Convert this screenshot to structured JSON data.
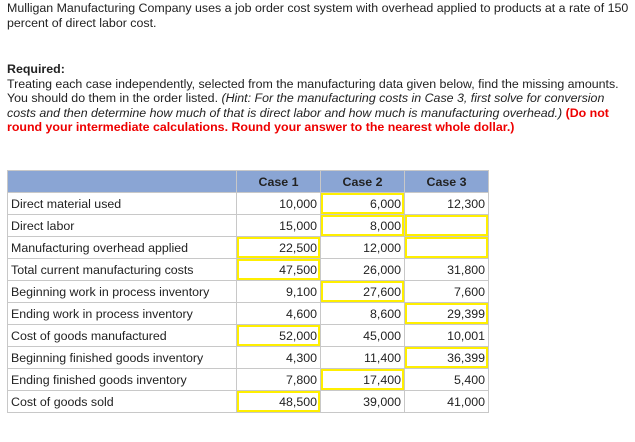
{
  "intro": "Mulligan Manufacturing Company uses a job order cost system with overhead applied to products at a rate of 150 percent of direct labor cost.",
  "required": {
    "heading": "Required:",
    "text": "Treating each case independently, selected from the manufacturing data given below, find the missing amounts. You should do them in the order listed. ",
    "hint": "(Hint: For the manufacturing costs in Case 3, first solve for conversion costs and then determine how much of that is direct labor and how much is manufacturing overhead.)",
    "warning": "(Do not round your intermediate calculations. Round your answer to the nearest whole dollar.)"
  },
  "table": {
    "headers": [
      "",
      "Case 1",
      "Case 2",
      "Case 3"
    ],
    "rows": [
      {
        "label": "Direct material used",
        "values": [
          "10,000",
          "6,000",
          "12,300"
        ],
        "inputs": [
          false,
          true,
          false
        ]
      },
      {
        "label": "Direct labor",
        "values": [
          "15,000",
          "8,000",
          ""
        ],
        "inputs": [
          false,
          true,
          true
        ]
      },
      {
        "label": "Manufacturing overhead applied",
        "values": [
          "22,500",
          "12,000",
          ""
        ],
        "inputs": [
          true,
          false,
          true
        ]
      },
      {
        "label": "Total current manufacturing costs",
        "values": [
          "47,500",
          "26,000",
          "31,800"
        ],
        "inputs": [
          true,
          false,
          false
        ]
      },
      {
        "label": "Beginning work in process inventory",
        "values": [
          "9,100",
          "27,600",
          "7,600"
        ],
        "inputs": [
          false,
          true,
          false
        ]
      },
      {
        "label": "Ending work in process inventory",
        "values": [
          "4,600",
          "8,600",
          "29,399"
        ],
        "inputs": [
          false,
          false,
          true
        ]
      },
      {
        "label": "Cost of goods manufactured",
        "values": [
          "52,000",
          "45,000",
          "10,001"
        ],
        "inputs": [
          true,
          false,
          false
        ]
      },
      {
        "label": "Beginning finished goods inventory",
        "values": [
          "4,300",
          "11,400",
          "36,399"
        ],
        "inputs": [
          false,
          false,
          true
        ]
      },
      {
        "label": "Ending finished goods inventory",
        "values": [
          "7,800",
          "17,400",
          "5,400"
        ],
        "inputs": [
          false,
          true,
          false
        ]
      },
      {
        "label": "Cost of goods sold",
        "values": [
          "48,500",
          "39,000",
          "41,000"
        ],
        "inputs": [
          true,
          false,
          false
        ]
      }
    ]
  },
  "colors": {
    "header": "#8aa5d4",
    "input_border": "#ffef00",
    "warning": "#ee0000"
  }
}
